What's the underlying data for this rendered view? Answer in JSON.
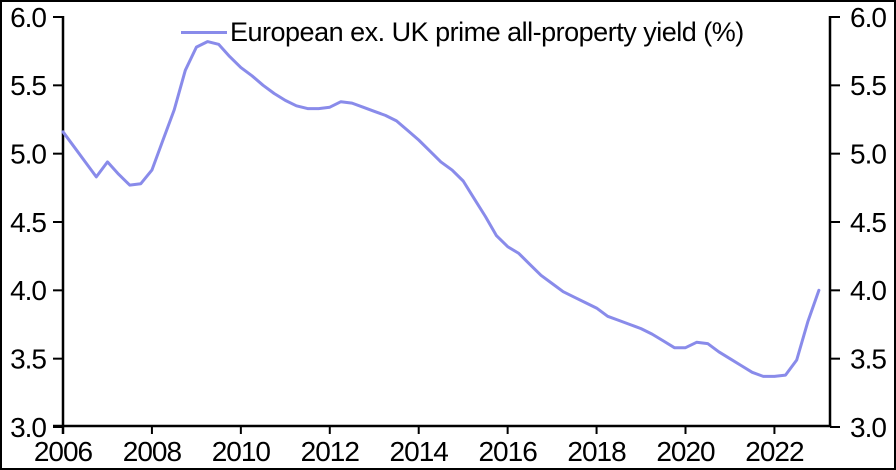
{
  "chart_data": {
    "type": "line",
    "title": "",
    "xlabel": "",
    "ylabel": "",
    "legend_label": "European ex. UK prime all-property yield (%)",
    "legend_position": "top-center",
    "grid": false,
    "background_color": "#ffffff",
    "axis_color": "#000000",
    "border_color": "#000000",
    "xlim": [
      2006,
      2023.25
    ],
    "ylim": [
      3.0,
      6.0
    ],
    "x_ticks": [
      2006,
      2008,
      2010,
      2012,
      2014,
      2016,
      2018,
      2020,
      2022
    ],
    "x_tick_labels": [
      "2006",
      "2008",
      "2010",
      "2012",
      "2014",
      "2016",
      "2018",
      "2020",
      "2022"
    ],
    "y_ticks": [
      6.0,
      5.5,
      5.0,
      4.5,
      4.0,
      3.5,
      3.0
    ],
    "y_tick_labels_left": [
      "6.0",
      "5.5",
      "5.0",
      "4.5",
      "4.0",
      "3.5",
      "3.0"
    ],
    "y_tick_labels_right": [
      "6.0",
      "5.5",
      "5.0",
      "4.5",
      "4.0",
      "3.5",
      "3.0"
    ],
    "series": [
      {
        "name": "European ex. UK prime all-property yield (%)",
        "color": "#898bea",
        "line_width": 3,
        "x_start": 2006.0,
        "x_step": 0.25,
        "values": [
          5.16,
          5.05,
          4.94,
          4.83,
          4.94,
          4.85,
          4.77,
          4.78,
          4.88,
          5.1,
          5.32,
          5.61,
          5.78,
          5.82,
          5.8,
          5.71,
          5.63,
          5.57,
          5.5,
          5.44,
          5.39,
          5.35,
          5.33,
          5.33,
          5.34,
          5.38,
          5.37,
          5.34,
          5.31,
          5.28,
          5.24,
          5.17,
          5.1,
          5.02,
          4.94,
          4.88,
          4.8,
          4.67,
          4.54,
          4.4,
          4.32,
          4.27,
          4.19,
          4.11,
          4.05,
          3.99,
          3.95,
          3.91,
          3.87,
          3.81,
          3.78,
          3.75,
          3.72,
          3.68,
          3.63,
          3.58,
          3.58,
          3.62,
          3.61,
          3.55,
          3.5,
          3.45,
          3.4,
          3.37,
          3.37,
          3.38,
          3.49,
          3.77,
          4.0
        ]
      }
    ]
  }
}
